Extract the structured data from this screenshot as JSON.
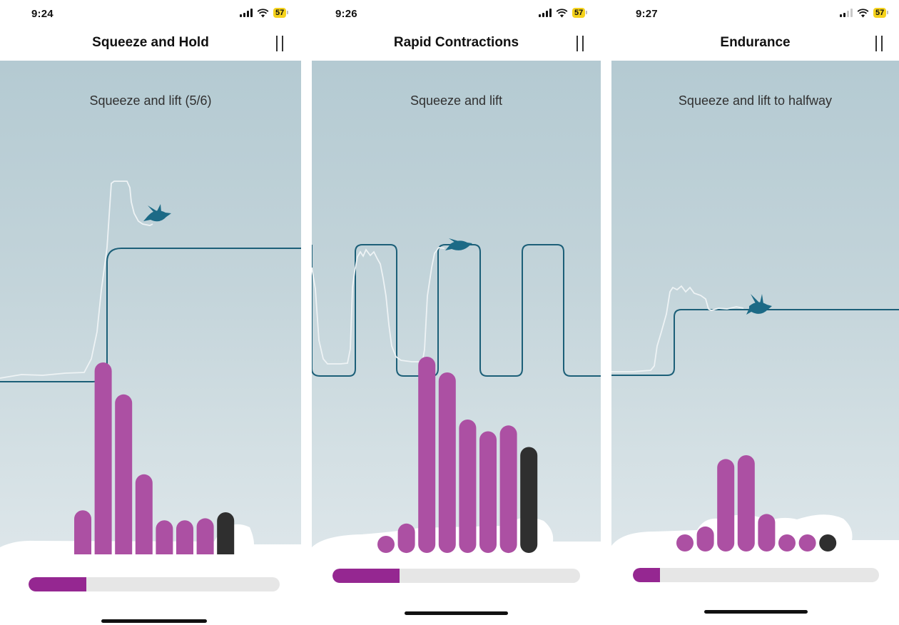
{
  "colors": {
    "bar": "#ac50a3",
    "bar_current": "#2f2f2f",
    "target_line": "#1c5f78",
    "trace_line": "#eef3f5",
    "bird": "#1c6a86",
    "progress_fill": "#952791",
    "battery": "#f5d21c"
  },
  "screens": [
    {
      "status": {
        "time": "9:24",
        "battery": "57"
      },
      "title": "Squeeze and Hold",
      "instruction": "Squeeze and lift (5/6)",
      "progress": 0.23,
      "bar_levels": [
        0.26,
        1.0,
        0.84,
        0.44,
        0.21,
        0.21,
        0.22
      ],
      "current_level": 0.25,
      "pause_icon": "pause-icon",
      "bird_icon": "bird-icon"
    },
    {
      "status": {
        "time": "9:26",
        "battery": "57"
      },
      "title": "Rapid Contractions",
      "instruction": "Squeeze and lift",
      "progress": 0.27,
      "bar_levels": [
        0.08,
        0.15,
        1.0,
        0.92,
        0.68,
        0.62,
        0.65
      ],
      "current_level": 0.54,
      "pause_icon": "pause-icon",
      "bird_icon": "bird-icon"
    },
    {
      "status": {
        "time": "9:27",
        "battery": "57"
      },
      "title": "Endurance",
      "instruction": "Squeeze and lift to halfway",
      "progress": 0.11,
      "bar_levels": [
        0.15,
        0.26,
        0.96,
        1.0,
        0.39,
        0.15,
        0.15
      ],
      "current_level": 0.15,
      "pause_icon": "pause-icon",
      "bird_icon": "bird-icon"
    }
  ]
}
